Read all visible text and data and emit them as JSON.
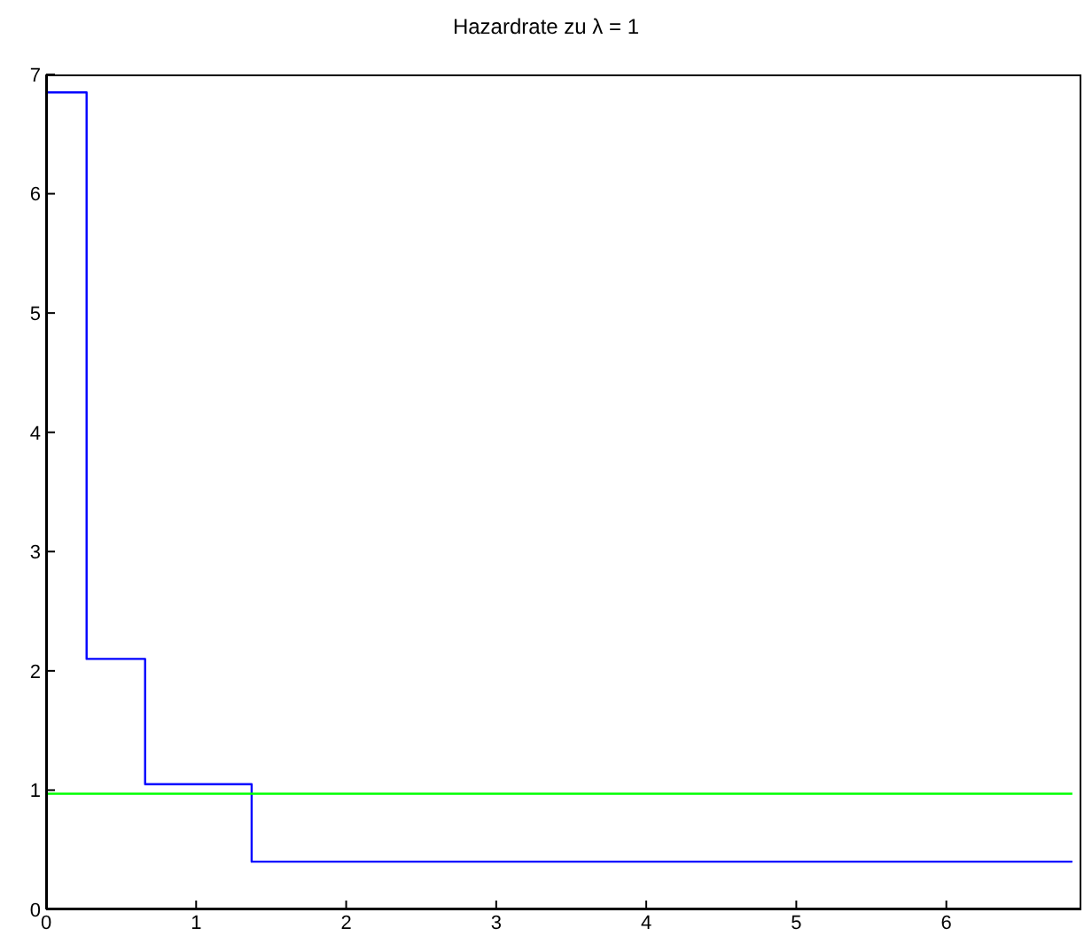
{
  "chart_data": {
    "type": "step",
    "title": "Hazardrate zu λ = 1",
    "xlim": [
      0,
      6.9
    ],
    "xticks": [
      0,
      1,
      2,
      3,
      4,
      5,
      6
    ],
    "ylim": [
      0,
      7
    ],
    "yticks": [
      0,
      1,
      2,
      3,
      4,
      5,
      6,
      7
    ],
    "grid": false,
    "legend": false,
    "marker": "none",
    "line_style": "solid",
    "series": [
      {
        "color": "#0000ff",
        "x": [
          0,
          0.27,
          0.66,
          1.37,
          6.84
        ],
        "values": [
          6.85,
          2.1,
          1.05,
          0.4,
          0.4
        ]
      },
      {
        "type": "line",
        "color": "#00ff00",
        "x": [
          0,
          6.84
        ],
        "values": [
          0.97,
          0.97
        ]
      }
    ]
  }
}
